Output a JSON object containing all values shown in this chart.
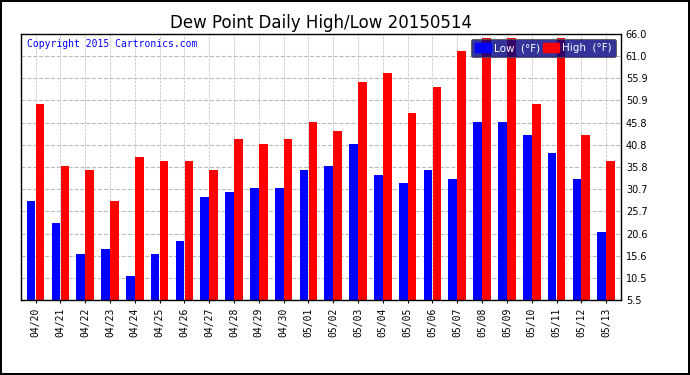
{
  "title": "Dew Point Daily High/Low 20150514",
  "copyright": "Copyright 2015 Cartronics.com",
  "categories": [
    "04/20",
    "04/21",
    "04/22",
    "04/23",
    "04/24",
    "04/25",
    "04/26",
    "04/27",
    "04/28",
    "04/29",
    "04/30",
    "05/01",
    "05/02",
    "05/03",
    "05/04",
    "05/05",
    "05/06",
    "05/07",
    "05/08",
    "05/09",
    "05/10",
    "05/11",
    "05/12",
    "05/13"
  ],
  "low_values": [
    28,
    23,
    16,
    17,
    11,
    16,
    19,
    29,
    30,
    31,
    31,
    35,
    36,
    41,
    34,
    32,
    35,
    33,
    46,
    46,
    43,
    39,
    33,
    21
  ],
  "high_values": [
    50,
    36,
    35,
    28,
    38,
    37,
    37,
    35,
    42,
    41,
    42,
    46,
    44,
    55,
    57,
    48,
    54,
    62,
    65,
    65,
    50,
    65,
    43,
    37
  ],
  "low_color": "#0000ff",
  "high_color": "#ff0000",
  "bg_color": "#ffffff",
  "plot_bg_color": "#ffffff",
  "grid_color": "#bbbbbb",
  "border_color": "#000000",
  "ylim": [
    5.5,
    66.0
  ],
  "yticks": [
    5.5,
    10.5,
    15.6,
    20.6,
    25.7,
    30.7,
    35.8,
    40.8,
    45.8,
    50.9,
    55.9,
    61.0,
    66.0
  ],
  "legend_low_label": "Low  (°F)",
  "legend_high_label": "High  (°F)",
  "title_fontsize": 12,
  "label_fontsize": 7,
  "copyright_fontsize": 7
}
